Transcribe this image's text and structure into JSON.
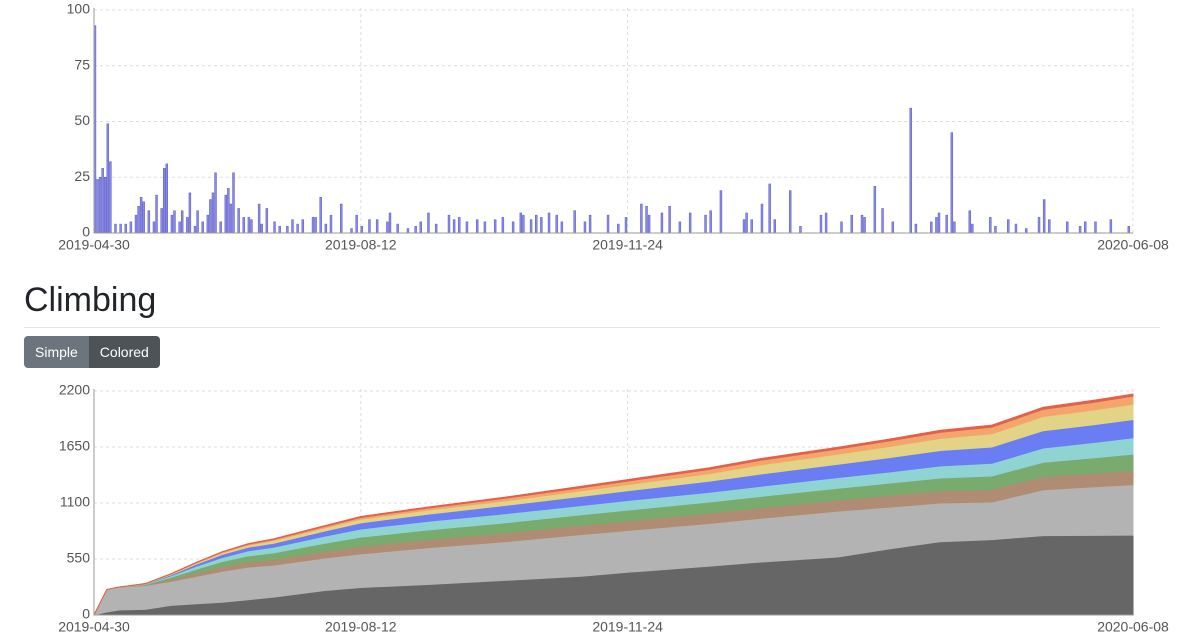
{
  "heading": "Climbing",
  "buttons": [
    "Simple",
    "Colored"
  ],
  "chart_data": [
    {
      "type": "bar",
      "x": [
        0,
        1,
        2,
        3,
        4,
        5,
        6,
        8,
        10,
        12,
        14,
        16,
        17,
        18,
        19,
        21,
        23,
        24,
        26,
        27,
        28,
        30,
        31,
        33,
        34,
        36,
        37,
        39,
        40,
        42,
        44,
        45,
        46,
        47,
        49,
        51,
        52,
        53,
        54,
        56,
        58,
        60,
        61,
        64,
        65,
        67,
        70,
        72,
        75,
        77,
        79,
        81,
        85,
        86,
        88,
        90,
        92,
        96,
        100,
        102,
        104,
        107,
        110,
        114,
        115,
        118,
        122,
        125,
        127,
        130,
        133,
        138,
        140,
        142,
        145,
        149,
        152,
        156,
        159,
        163,
        166,
        167,
        170,
        172,
        174,
        177,
        180,
        182,
        187,
        191,
        193,
        200,
        204,
        207,
        213,
        215,
        216,
        221,
        224,
        228,
        232,
        238,
        240,
        244,
        253,
        254,
        256,
        260,
        263,
        265,
        271,
        275,
        283,
        285,
        291,
        295,
        299,
        300,
        304,
        307,
        311,
        318,
        320,
        326,
        328,
        329,
        332,
        334,
        335,
        341,
        342,
        349,
        351,
        356,
        359,
        363,
        368,
        370,
        372,
        379,
        384,
        386,
        390,
        396,
        403
      ],
      "values": [
        93,
        24,
        25,
        29,
        25,
        49,
        32,
        4,
        4,
        4,
        5,
        8,
        12,
        16,
        14,
        10,
        5,
        17,
        11,
        29,
        31,
        8,
        10,
        5,
        10,
        7,
        18,
        3,
        10,
        5,
        8,
        15,
        18,
        27,
        5,
        17,
        20,
        13,
        27,
        11,
        7,
        7,
        6,
        13,
        4,
        11,
        5,
        3,
        3,
        6,
        4,
        6,
        7,
        7,
        16,
        4,
        8,
        13,
        2,
        8,
        3,
        6,
        6,
        5,
        9,
        4,
        2,
        3,
        5,
        9,
        4,
        8,
        6,
        7,
        5,
        6,
        5,
        6,
        7,
        5,
        9,
        8,
        6,
        8,
        7,
        9,
        8,
        5,
        10,
        5,
        8,
        8,
        4,
        7,
        13,
        12,
        8,
        9,
        12,
        5,
        9,
        8,
        10,
        19,
        6,
        9,
        6,
        13,
        22,
        6,
        19,
        3,
        8,
        9,
        5,
        8,
        8,
        7,
        21,
        11,
        5,
        56,
        4,
        5,
        7,
        9,
        8,
        45,
        5,
        10,
        4,
        7,
        3,
        6,
        4,
        2,
        7,
        15,
        6,
        5,
        3,
        5,
        5,
        6,
        3
      ],
      "color": "#8a8ae6",
      "xlim": [
        0,
        405
      ],
      "xticks": [
        {
          "value": 0,
          "label": "2019-04-30"
        },
        {
          "value": 104,
          "label": "2019-08-12"
        },
        {
          "value": 208,
          "label": "2019-11-24"
        },
        {
          "value": 405,
          "label": "2020-06-08"
        }
      ],
      "ylim": [
        0,
        100
      ],
      "yticks": [
        0,
        25,
        50,
        75,
        100
      ],
      "grid": true
    },
    {
      "type": "stacked-area",
      "x": [
        0,
        5,
        10,
        20,
        30,
        40,
        50,
        60,
        70,
        90,
        104,
        130,
        160,
        190,
        208,
        240,
        260,
        290,
        310,
        330,
        350,
        370,
        390,
        405
      ],
      "series": [
        {
          "color": "#666666",
          "values": [
            0,
            30,
            50,
            55,
            95,
            110,
            125,
            150,
            175,
            240,
            270,
            300,
            340,
            380,
            420,
            480,
            520,
            570,
            650,
            720,
            740,
            780,
            782,
            785
          ]
        },
        {
          "color": "#b3b3b3",
          "values": [
            0,
            220,
            225,
            235,
            235,
            270,
            305,
            320,
            315,
            320,
            330,
            360,
            380,
            410,
            410,
            420,
            430,
            450,
            410,
            380,
            370,
            450,
            478,
            495
          ]
        },
        {
          "color": "#b08c74",
          "values": [
            0,
            0,
            0,
            5,
            20,
            35,
            45,
            50,
            55,
            65,
            75,
            80,
            85,
            90,
            95,
            100,
            105,
            110,
            115,
            120,
            125,
            130,
            135,
            140
          ]
        },
        {
          "color": "#79ab6f",
          "values": [
            0,
            0,
            0,
            5,
            20,
            35,
            50,
            60,
            65,
            80,
            90,
            95,
            100,
            105,
            105,
            110,
            110,
            115,
            120,
            125,
            130,
            140,
            150,
            160
          ]
        },
        {
          "color": "#8fd3d3",
          "values": [
            0,
            0,
            0,
            3,
            15,
            30,
            40,
            50,
            55,
            70,
            80,
            85,
            90,
            90,
            95,
            95,
            100,
            105,
            110,
            120,
            125,
            140,
            150,
            160
          ]
        },
        {
          "color": "#6a7df2",
          "values": [
            0,
            0,
            0,
            2,
            10,
            20,
            30,
            35,
            40,
            50,
            60,
            70,
            80,
            90,
            95,
            110,
            120,
            130,
            140,
            150,
            160,
            170,
            175,
            180
          ]
        },
        {
          "color": "#e2d386",
          "values": [
            0,
            0,
            0,
            2,
            5,
            10,
            15,
            20,
            25,
            30,
            35,
            40,
            45,
            55,
            60,
            75,
            90,
            100,
            110,
            120,
            130,
            140,
            145,
            150
          ]
        },
        {
          "color": "#f3a56c",
          "values": [
            0,
            0,
            0,
            1,
            3,
            5,
            8,
            10,
            12,
            15,
            18,
            20,
            25,
            30,
            35,
            40,
            45,
            50,
            55,
            60,
            65,
            70,
            75,
            80
          ]
        },
        {
          "color": "#e4604a",
          "values": [
            0,
            0,
            0,
            1,
            2,
            3,
            4,
            5,
            6,
            8,
            9,
            10,
            12,
            14,
            15,
            16,
            17,
            18,
            18,
            19,
            20,
            20,
            20,
            20
          ]
        }
      ],
      "xlim": [
        0,
        405
      ],
      "xticks": [
        {
          "value": 0,
          "label": "2019-04-30"
        },
        {
          "value": 104,
          "label": "2019-08-12"
        },
        {
          "value": 208,
          "label": "2019-11-24"
        },
        {
          "value": 405,
          "label": "2020-06-08"
        }
      ],
      "ylim": [
        0,
        2200
      ],
      "yticks": [
        0,
        550,
        1100,
        1650,
        2200
      ],
      "grid": true
    }
  ]
}
